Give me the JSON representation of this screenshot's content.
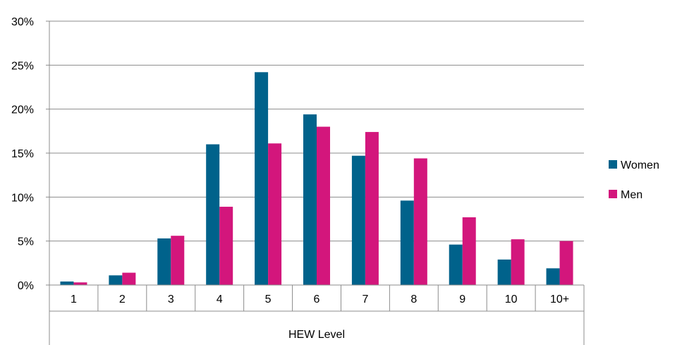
{
  "chart_data": {
    "type": "bar",
    "categories": [
      "1",
      "2",
      "3",
      "4",
      "5",
      "6",
      "7",
      "8",
      "9",
      "10",
      "10+"
    ],
    "series": [
      {
        "name": "Women",
        "color": "#00628b",
        "values": [
          0.4,
          1.1,
          5.3,
          16.0,
          24.2,
          19.4,
          14.7,
          9.6,
          4.6,
          2.9,
          1.9
        ]
      },
      {
        "name": "Men",
        "color": "#d3167c",
        "values": [
          0.3,
          1.4,
          5.6,
          8.9,
          16.1,
          18.0,
          17.4,
          14.4,
          7.7,
          5.2,
          5.0
        ]
      }
    ],
    "title": "",
    "xlabel": "HEW Level",
    "ylabel": "",
    "ylim": [
      0,
      30
    ],
    "yticks": [
      0,
      5,
      10,
      15,
      20,
      25,
      30
    ],
    "ytick_format": "percent",
    "grid": true,
    "legend": "right"
  }
}
